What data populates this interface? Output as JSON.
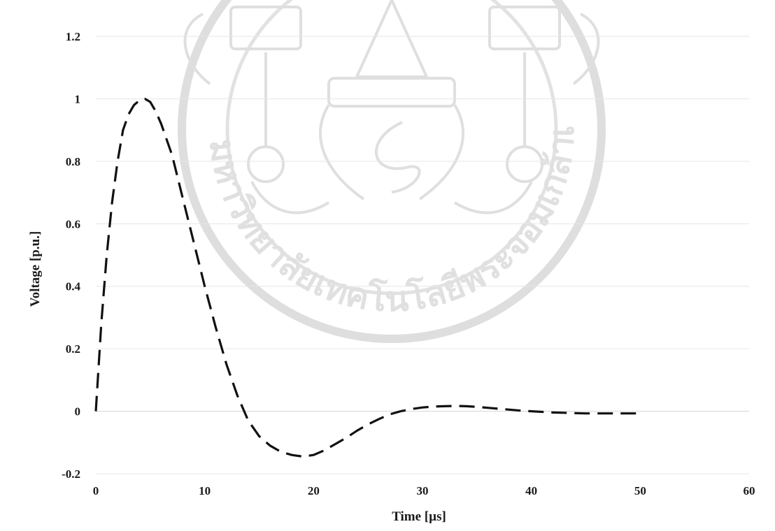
{
  "chart_data": {
    "type": "line",
    "xlabel": "Time [µs]",
    "ylabel": "Voltage [p.u.]",
    "xlim": [
      0,
      60
    ],
    "ylim": [
      -0.2,
      1.2
    ],
    "x_ticks": [
      0,
      10,
      20,
      30,
      40,
      50,
      60
    ],
    "y_ticks": [
      -0.2,
      0,
      0.2,
      0.4,
      0.6,
      0.8,
      1,
      1.2
    ],
    "y_tick_labels": [
      "-0.2",
      "0",
      "0.2",
      "0.4",
      "0.6",
      "0.8",
      "1",
      "1.2"
    ],
    "grid": "horizontal-light",
    "line_style": "dashed",
    "line_color": "#111111",
    "series": [
      {
        "x": [
          0,
          0.5,
          1,
          1.5,
          2,
          2.5,
          3,
          3.5,
          4,
          4.5,
          5,
          5.5,
          6,
          7,
          8,
          9,
          10,
          11,
          12,
          13,
          14,
          15,
          16,
          17,
          18,
          19,
          20,
          21,
          22,
          23,
          24,
          25,
          26,
          27,
          28,
          29,
          30,
          31,
          32,
          33,
          34,
          35,
          36,
          37,
          38,
          39,
          40,
          41,
          42,
          43,
          44,
          45,
          46,
          47,
          48,
          49,
          50
        ],
        "y": [
          0,
          0.28,
          0.5,
          0.67,
          0.8,
          0.9,
          0.95,
          0.98,
          0.995,
          1.0,
          0.99,
          0.96,
          0.92,
          0.82,
          0.68,
          0.54,
          0.4,
          0.27,
          0.15,
          0.05,
          -0.03,
          -0.08,
          -0.11,
          -0.13,
          -0.14,
          -0.145,
          -0.14,
          -0.125,
          -0.105,
          -0.085,
          -0.062,
          -0.042,
          -0.025,
          -0.01,
          0.0,
          0.007,
          0.012,
          0.015,
          0.016,
          0.017,
          0.016,
          0.014,
          0.011,
          0.008,
          0.005,
          0.002,
          0.0,
          -0.002,
          -0.004,
          -0.005,
          -0.006,
          -0.007,
          -0.007,
          -0.007,
          -0.007,
          -0.007,
          -0.007
        ]
      }
    ]
  },
  "watermark": {
    "arc_text": "มหาวิทยาลัยเทคโนโลยีพระจอมเกล้าเจ้าคุณทหารลาดกระบัง"
  }
}
